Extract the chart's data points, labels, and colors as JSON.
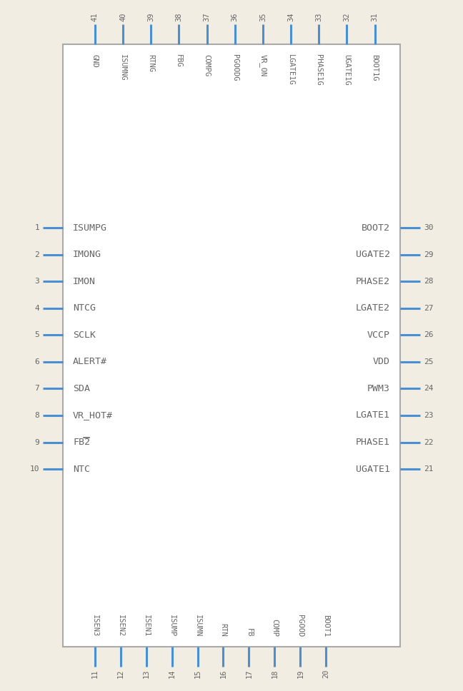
{
  "bg_color": "#f2ede3",
  "box_color": "#aaaaaa",
  "pin_color": "#4a8fd4",
  "text_color": "#666666",
  "left_pins": [
    {
      "num": 1,
      "name": "ISUMPG"
    },
    {
      "num": 2,
      "name": "IMONG"
    },
    {
      "num": 3,
      "name": "IMON"
    },
    {
      "num": 4,
      "name": "NTCG"
    },
    {
      "num": 5,
      "name": "SCLK"
    },
    {
      "num": 6,
      "name": "ALERT#"
    },
    {
      "num": 7,
      "name": "SDA"
    },
    {
      "num": 8,
      "name": "VR_HOT#"
    },
    {
      "num": 9,
      "name": "FB2"
    },
    {
      "num": 10,
      "name": "NTC"
    }
  ],
  "right_pins": [
    {
      "num": 30,
      "name": "BOOT2"
    },
    {
      "num": 29,
      "name": "UGATE2"
    },
    {
      "num": 28,
      "name": "PHASE2"
    },
    {
      "num": 27,
      "name": "LGATE2"
    },
    {
      "num": 26,
      "name": "VCCP"
    },
    {
      "num": 25,
      "name": "VDD"
    },
    {
      "num": 24,
      "name": "PWM3"
    },
    {
      "num": 23,
      "name": "LGATE1"
    },
    {
      "num": 22,
      "name": "PHASE1"
    },
    {
      "num": 21,
      "name": "UGATE1"
    }
  ],
  "top_pins": [
    {
      "num": 41,
      "name": "GND"
    },
    {
      "num": 40,
      "name": "ISUMNG"
    },
    {
      "num": 39,
      "name": "RTNG"
    },
    {
      "num": 38,
      "name": "FBG"
    },
    {
      "num": 37,
      "name": "COMPG"
    },
    {
      "num": 36,
      "name": "PGOODG"
    },
    {
      "num": 35,
      "name": "VR_ON"
    },
    {
      "num": 34,
      "name": "LGATE1G"
    },
    {
      "num": 33,
      "name": "PHASE1G"
    },
    {
      "num": 32,
      "name": "UGATE1G"
    },
    {
      "num": 31,
      "name": "BOOT1G"
    }
  ],
  "bottom_pins": [
    {
      "num": 11,
      "name": "ISEN3"
    },
    {
      "num": 12,
      "name": "ISEN2"
    },
    {
      "num": 13,
      "name": "ISEN1"
    },
    {
      "num": 14,
      "name": "ISUMP"
    },
    {
      "num": 15,
      "name": "ISUMN"
    },
    {
      "num": 16,
      "name": "RTN"
    },
    {
      "num": 17,
      "name": "FB"
    },
    {
      "num": 18,
      "name": "COMP"
    },
    {
      "num": 19,
      "name": "PGOOD"
    },
    {
      "num": 20,
      "name": "BOOT1"
    }
  ]
}
